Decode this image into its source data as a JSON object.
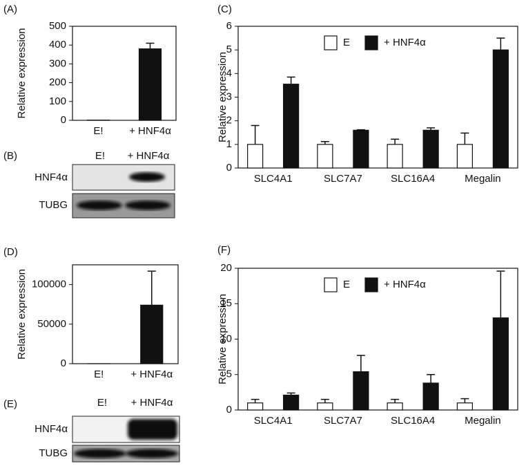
{
  "chart_data": [
    {
      "type": "bar",
      "panel_label": "(A)",
      "y_label": "Relative expression",
      "categories": [
        "E!",
        "+ HNF4α"
      ],
      "values": [
        1,
        380
      ],
      "errors": [
        0,
        30
      ],
      "color": "#111111",
      "ylim": [
        0,
        500
      ],
      "yticks": [
        0,
        100,
        200,
        300,
        400,
        500
      ]
    },
    {
      "type": "bar",
      "panel_label": "(C)",
      "y_label": "Relative expression",
      "categories": [
        "SLC4A1",
        "SLC7A7",
        "SLC16A4",
        "Megalin"
      ],
      "series": [
        {
          "name": "E",
          "color": "#ffffff",
          "values": [
            1,
            1,
            1,
            1
          ],
          "errors": [
            0.8,
            0.12,
            0.22,
            0.48
          ]
        },
        {
          "name": "+ HNF4α",
          "color": "#111111",
          "values": [
            3.55,
            1.6,
            1.6,
            5.0
          ],
          "errors": [
            0.3,
            0.02,
            0.1,
            0.5
          ]
        }
      ],
      "ylim": [
        0,
        6
      ],
      "yticks": [
        0,
        1,
        2,
        3,
        4,
        5,
        6
      ]
    },
    {
      "type": "bar",
      "panel_label": "(D)",
      "y_label": "Relative expression",
      "categories": [
        "E!",
        "+ HNF4α"
      ],
      "values": [
        1,
        74000
      ],
      "errors": [
        0,
        43000
      ],
      "color": "#111111",
      "ylim": [
        0,
        125000
      ],
      "yticks": [
        0,
        50000,
        100000
      ]
    },
    {
      "type": "bar",
      "panel_label": "(F)",
      "y_label": "Relative expression",
      "categories": [
        "SLC4A1",
        "SLC7A7",
        "SLC16A4",
        "Megalin"
      ],
      "series": [
        {
          "name": "E",
          "color": "#ffffff",
          "values": [
            1,
            1,
            1,
            1
          ],
          "errors": [
            0.5,
            0.5,
            0.5,
            0.6
          ]
        },
        {
          "name": "+ HNF4α",
          "color": "#111111",
          "values": [
            2.1,
            5.4,
            3.8,
            13.0
          ],
          "errors": [
            0.3,
            2.3,
            1.2,
            6.6
          ]
        }
      ],
      "ylim": [
        0,
        20
      ],
      "yticks": [
        0,
        5,
        10,
        15,
        20
      ]
    }
  ],
  "blots": [
    {
      "panel_label": "(B)",
      "lanes": [
        "E!",
        "+ HNF4α"
      ],
      "rows": [
        "HNF4α",
        "TUBG"
      ]
    },
    {
      "panel_label": "(E)",
      "lanes": [
        "E!",
        "+ HNF4α"
      ],
      "rows": [
        "HNF4α",
        "TUBG"
      ]
    }
  ]
}
